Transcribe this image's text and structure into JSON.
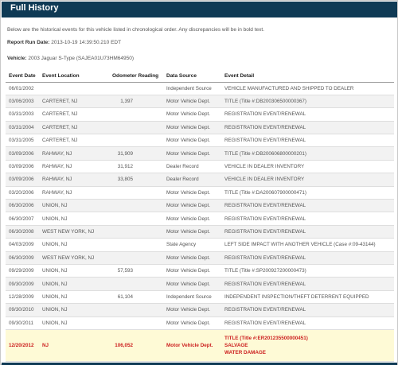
{
  "header": {
    "title": "Full History"
  },
  "intro": "Below are the historical events for this vehicle listed in chronological order. Any discrepancies will be in bold text.",
  "report": {
    "label": "Report Run Date:",
    "value": "2013-10-19 14:39:50.210 EDT"
  },
  "vehicle": {
    "label": "Vehicle:",
    "value": "2003 Jaguar S-Type (SAJEA01U73HM64950)"
  },
  "table": {
    "headers": [
      "Event Date",
      "Event Location",
      "Odometer Reading",
      "Data Source",
      "Event Detail"
    ],
    "rows": [
      {
        "date": "06/01/2002",
        "location": "",
        "odometer": "",
        "source": "Independent Source",
        "detail": [
          "VEHICLE MANUFACTURED AND SHIPPED TO DEALER"
        ]
      },
      {
        "date": "03/06/2003",
        "location": "CARTERET, NJ",
        "odometer": "1,397",
        "source": "Motor Vehicle Dept.",
        "detail": [
          "TITLE (Title #:DB200306500000367)"
        ]
      },
      {
        "date": "03/31/2003",
        "location": "CARTERET, NJ",
        "odometer": "",
        "source": "Motor Vehicle Dept.",
        "detail": [
          "REGISTRATION EVENT/RENEWAL"
        ]
      },
      {
        "date": "03/31/2004",
        "location": "CARTERET, NJ",
        "odometer": "",
        "source": "Motor Vehicle Dept.",
        "detail": [
          "REGISTRATION EVENT/RENEWAL"
        ]
      },
      {
        "date": "03/31/2005",
        "location": "CARTERET, NJ",
        "odometer": "",
        "source": "Motor Vehicle Dept.",
        "detail": [
          "REGISTRATION EVENT/RENEWAL"
        ]
      },
      {
        "date": "03/09/2006",
        "location": "RAHWAY, NJ",
        "odometer": "31,909",
        "source": "Motor Vehicle Dept.",
        "detail": [
          "TITLE (Title #:DB200606800000201)"
        ]
      },
      {
        "date": "03/09/2006",
        "location": "RAHWAY, NJ",
        "odometer": "31,912",
        "source": "Dealer Record",
        "detail": [
          "VEHICLE IN DEALER INVENTORY"
        ]
      },
      {
        "date": "03/09/2006",
        "location": "RAHWAY, NJ",
        "odometer": "33,805",
        "source": "Dealer Record",
        "detail": [
          "VEHICLE IN DEALER INVENTORY"
        ]
      },
      {
        "date": "03/20/2006",
        "location": "RAHWAY, NJ",
        "odometer": "",
        "source": "Motor Vehicle Dept.",
        "detail": [
          "TITLE (Title #:DA200607900000471)"
        ]
      },
      {
        "date": "06/30/2006",
        "location": "UNION, NJ",
        "odometer": "",
        "source": "Motor Vehicle Dept.",
        "detail": [
          "REGISTRATION EVENT/RENEWAL"
        ]
      },
      {
        "date": "06/30/2007",
        "location": "UNION, NJ",
        "odometer": "",
        "source": "Motor Vehicle Dept.",
        "detail": [
          "REGISTRATION EVENT/RENEWAL"
        ]
      },
      {
        "date": "06/30/2008",
        "location": "WEST NEW YORK, NJ",
        "odometer": "",
        "source": "Motor Vehicle Dept.",
        "detail": [
          "REGISTRATION EVENT/RENEWAL"
        ]
      },
      {
        "date": "04/03/2009",
        "location": "UNION, NJ",
        "odometer": "",
        "source": "State Agency",
        "detail": [
          "LEFT SIDE IMPACT WITH ANOTHER VEHICLE (Case #:09-43144)"
        ]
      },
      {
        "date": "06/30/2009",
        "location": "WEST NEW YORK, NJ",
        "odometer": "",
        "source": "Motor Vehicle Dept.",
        "detail": [
          "REGISTRATION EVENT/RENEWAL"
        ]
      },
      {
        "date": "09/29/2009",
        "location": "UNION, NJ",
        "odometer": "57,593",
        "source": "Motor Vehicle Dept.",
        "detail": [
          "TITLE (Title #:SP200927200000473)"
        ]
      },
      {
        "date": "09/30/2009",
        "location": "UNION, NJ",
        "odometer": "",
        "source": "Motor Vehicle Dept.",
        "detail": [
          "REGISTRATION EVENT/RENEWAL"
        ]
      },
      {
        "date": "12/28/2009",
        "location": "UNION, NJ",
        "odometer": "61,104",
        "source": "Independent Source",
        "detail": [
          "INDEPENDENT INSPECTION/THEFT DETERRENT EQUIPPED"
        ]
      },
      {
        "date": "09/30/2010",
        "location": "UNION, NJ",
        "odometer": "",
        "source": "Motor Vehicle Dept.",
        "detail": [
          "REGISTRATION EVENT/RENEWAL"
        ]
      },
      {
        "date": "09/30/2011",
        "location": "UNION, NJ",
        "odometer": "",
        "source": "Motor Vehicle Dept.",
        "detail": [
          "REGISTRATION EVENT/RENEWAL"
        ]
      },
      {
        "date": "12/20/2012",
        "location": "NJ",
        "odometer": "106,052",
        "source": "Motor Vehicle Dept.",
        "detail": [
          "TITLE (Title #:ER201235500000451)",
          "SALVAGE",
          "WATER DAMAGE"
        ],
        "discrepancy": true
      }
    ]
  },
  "colors": {
    "header_bg": "#0f3a55",
    "discrepancy_text": "#cc1f1f",
    "discrepancy_bg": "#fefad6",
    "stripe": "#f2f2f2"
  }
}
